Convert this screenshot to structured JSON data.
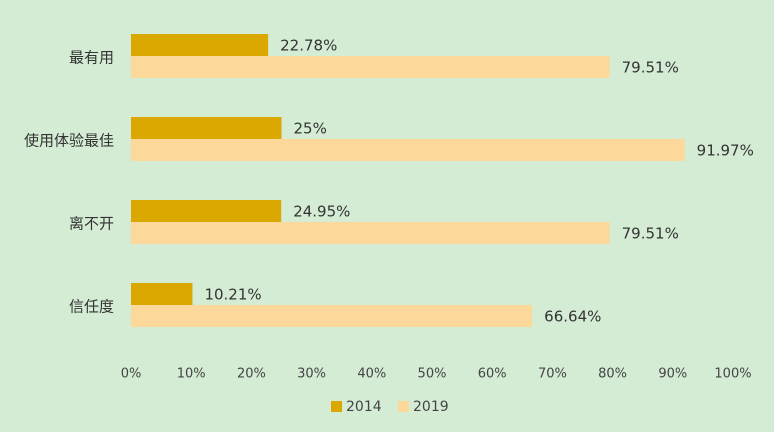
{
  "chart_data": {
    "type": "bar",
    "orientation": "horizontal",
    "categories": [
      "最有用",
      "使用体验最佳",
      "离不开",
      "信任度"
    ],
    "series": [
      {
        "name": "2014",
        "values": [
          22.78,
          25,
          24.95,
          10.21
        ],
        "labels": [
          "22.78%",
          "25%",
          "24.95%",
          "10.21%"
        ],
        "color": "#daa800"
      },
      {
        "name": "2019",
        "values": [
          79.51,
          91.97,
          79.51,
          66.64
        ],
        "labels": [
          "79.51%",
          "91.97%",
          "79.51%",
          "66.64%"
        ],
        "color": "#fcd89b"
      }
    ],
    "xlim": [
      0,
      100
    ],
    "x_ticks": [
      "0%",
      "10%",
      "20%",
      "30%",
      "40%",
      "50%",
      "60%",
      "70%",
      "80%",
      "90%",
      "100%"
    ],
    "grid": false,
    "legend_position": "bottom"
  }
}
